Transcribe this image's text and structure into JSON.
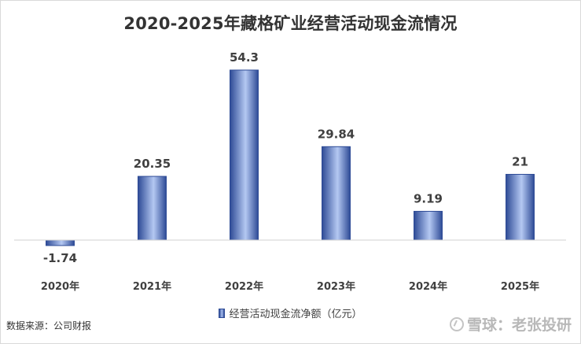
{
  "chart_data": {
    "type": "bar",
    "title": "2020-2025年藏格矿业经营活动现金流情况",
    "categories": [
      "2020年",
      "2021年",
      "2022年",
      "2023年",
      "2024年",
      "2025年"
    ],
    "series": [
      {
        "name": "经营活动现金流净额（亿元）",
        "values": [
          -1.74,
          20.35,
          54.3,
          29.84,
          9.19,
          21
        ],
        "labels": [
          "-1.74",
          "20.35",
          "54.3",
          "29.84",
          "9.19",
          "21"
        ]
      }
    ],
    "ylim": [
      -1.74,
      54.3
    ],
    "grid": false,
    "legend_position": "bottom",
    "colors": {
      "bar_dark": "#2e4b96",
      "bar_light": "#b4c8f2"
    }
  },
  "footer": {
    "source": "数据来源：公司财报",
    "watermark": "雪球：老张投研",
    "watermark_icon": "snowball-logo-icon"
  }
}
